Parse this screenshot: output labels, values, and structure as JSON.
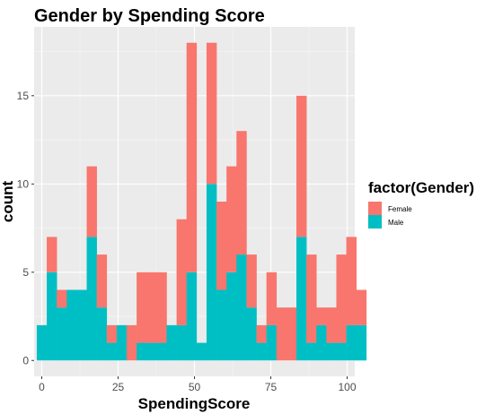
{
  "chart_data": {
    "type": "bar",
    "stacked": true,
    "title": "Gender by Spending Score",
    "xlabel": "SpendingScore",
    "ylabel": "count",
    "bin_width": 3.27,
    "x_start": -1.635,
    "xlim": [
      -2.5,
      102.5
    ],
    "ylim": [
      -0.9,
      18.9
    ],
    "x_ticks": [
      "0",
      "25",
      "50",
      "75",
      "100"
    ],
    "y_ticks": [
      "0",
      "5",
      "10",
      "15"
    ],
    "grid": true,
    "legend": {
      "title": "factor(Gender)",
      "position": "right",
      "entries": [
        {
          "name": "Female",
          "color": "#F8766D"
        },
        {
          "name": "Male",
          "color": "#00BFC4"
        }
      ]
    },
    "series": [
      {
        "name": "Male",
        "color": "#00BFC4",
        "values": [
          2,
          5,
          3,
          4,
          4,
          7,
          3,
          1,
          2,
          0,
          1,
          1,
          1,
          2,
          2,
          5,
          1,
          10,
          4,
          5,
          6,
          3,
          1,
          2,
          0,
          0,
          7,
          1,
          2,
          1,
          1,
          2,
          2
        ]
      },
      {
        "name": "Female",
        "color": "#F8766D",
        "values": [
          0,
          2,
          1,
          0,
          0,
          4,
          3,
          1,
          0,
          2,
          4,
          4,
          4,
          0,
          6,
          13,
          0,
          8,
          5,
          6,
          7,
          3,
          1,
          3,
          3,
          3,
          8,
          5,
          1,
          2,
          5,
          5,
          2
        ]
      }
    ]
  }
}
